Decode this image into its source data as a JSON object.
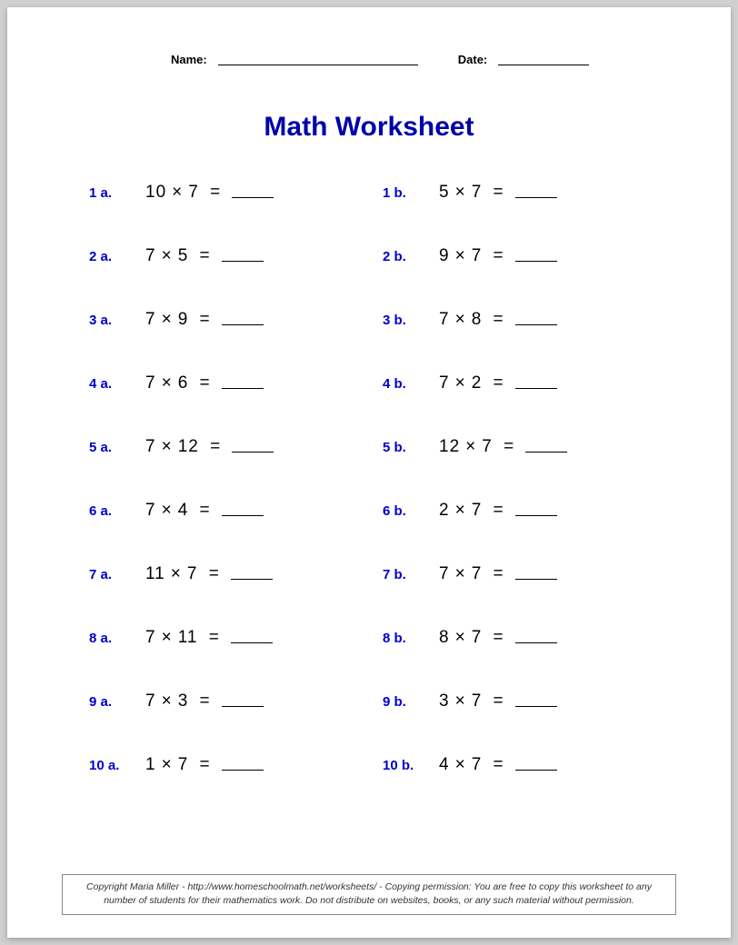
{
  "header": {
    "name_label": "Name:",
    "date_label": "Date:"
  },
  "title": "Math Worksheet",
  "colors": {
    "title": "#0000aa",
    "label": "#0000cc",
    "text": "#000000",
    "background": "#ffffff",
    "page_shadow": "#d0d0d0"
  },
  "typography": {
    "title_fontsize": 30,
    "label_fontsize": 15,
    "equation_fontsize": 19,
    "copyright_fontsize": 10.5
  },
  "problems": [
    {
      "label": "1 a.",
      "a": 10,
      "b": 7
    },
    {
      "label": "1 b.",
      "a": 5,
      "b": 7
    },
    {
      "label": "2 a.",
      "a": 7,
      "b": 5
    },
    {
      "label": "2 b.",
      "a": 9,
      "b": 7
    },
    {
      "label": "3 a.",
      "a": 7,
      "b": 9
    },
    {
      "label": "3 b.",
      "a": 7,
      "b": 8
    },
    {
      "label": "4 a.",
      "a": 7,
      "b": 6
    },
    {
      "label": "4 b.",
      "a": 7,
      "b": 2
    },
    {
      "label": "5 a.",
      "a": 7,
      "b": 12
    },
    {
      "label": "5 b.",
      "a": 12,
      "b": 7
    },
    {
      "label": "6 a.",
      "a": 7,
      "b": 4
    },
    {
      "label": "6 b.",
      "a": 2,
      "b": 7
    },
    {
      "label": "7 a.",
      "a": 11,
      "b": 7
    },
    {
      "label": "7 b.",
      "a": 7,
      "b": 7
    },
    {
      "label": "8 a.",
      "a": 7,
      "b": 11
    },
    {
      "label": "8 b.",
      "a": 8,
      "b": 7
    },
    {
      "label": "9 a.",
      "a": 7,
      "b": 3
    },
    {
      "label": "9 b.",
      "a": 3,
      "b": 7
    },
    {
      "label": "10 a.",
      "a": 1,
      "b": 7
    },
    {
      "label": "10 b.",
      "a": 4,
      "b": 7
    }
  ],
  "operator": "×",
  "equals": "=",
  "copyright": "Copyright Maria Miller - http://www.homeschoolmath.net/worksheets/ - Copying permission: You are free to copy this worksheet to any number of students for their mathematics work. Do not distribute on websites, books, or any such material without permission."
}
